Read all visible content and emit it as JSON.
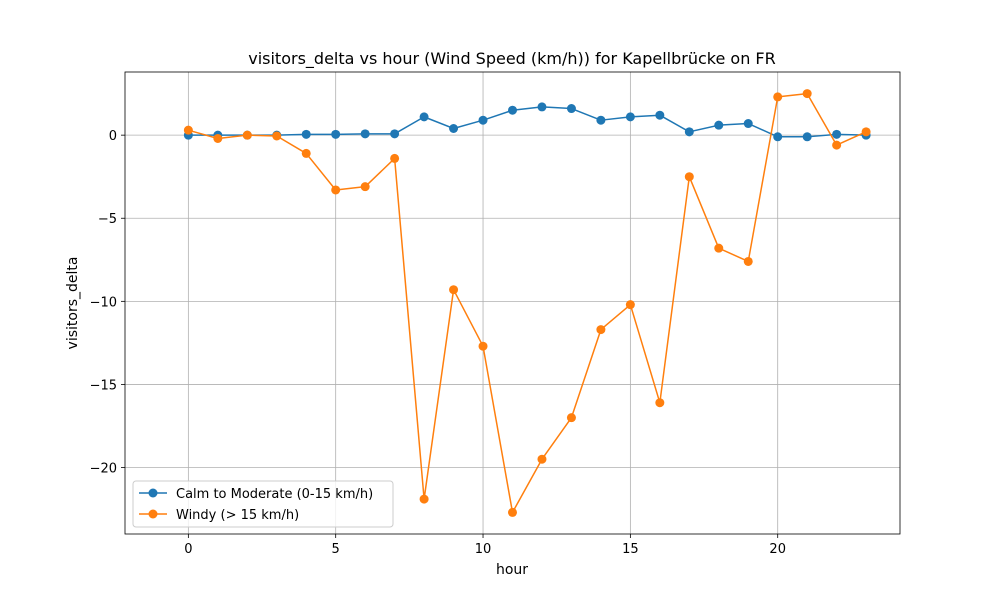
{
  "chart_data": {
    "type": "line",
    "title": "visitors_delta vs hour (Wind Speed (km/h)) for Kapellbrücke on FR",
    "xlabel": "hour",
    "ylabel": "visitors_delta",
    "x": [
      0,
      1,
      2,
      3,
      4,
      5,
      6,
      7,
      8,
      9,
      10,
      11,
      12,
      13,
      14,
      15,
      16,
      17,
      18,
      19,
      20,
      21,
      22,
      23
    ],
    "xlim": [
      -2.15,
      24.15
    ],
    "ylim": [
      -24.0,
      3.8
    ],
    "x_ticks": [
      0,
      5,
      10,
      15,
      20
    ],
    "x_tick_labels": [
      "0",
      "5",
      "10",
      "15",
      "20"
    ],
    "y_ticks": [
      0,
      -5,
      -10,
      -15,
      -20
    ],
    "y_tick_labels": [
      "0",
      "−5",
      "−10",
      "−15",
      "−20"
    ],
    "grid": true,
    "legend_position": "bottom-left",
    "series": [
      {
        "name": "Calm to Moderate (0-15 km/h)",
        "color": "#1f77b4",
        "values": [
          0.0,
          0.0,
          0.0,
          0.0,
          0.05,
          0.05,
          0.08,
          0.08,
          1.1,
          0.4,
          0.9,
          1.5,
          1.7,
          1.6,
          0.9,
          1.1,
          1.2,
          0.2,
          0.6,
          0.7,
          -0.1,
          -0.1,
          0.05,
          0.0
        ]
      },
      {
        "name": "Windy (> 15 km/h)",
        "color": "#ff7f0e",
        "values": [
          0.3,
          -0.2,
          0.0,
          -0.05,
          -1.1,
          -3.3,
          -3.1,
          -1.4,
          -21.9,
          -9.3,
          -12.7,
          -22.7,
          -19.5,
          -17.0,
          -11.7,
          -10.2,
          -16.1,
          -2.5,
          -6.8,
          -7.6,
          2.3,
          2.5,
          -0.6,
          0.2
        ]
      }
    ]
  }
}
